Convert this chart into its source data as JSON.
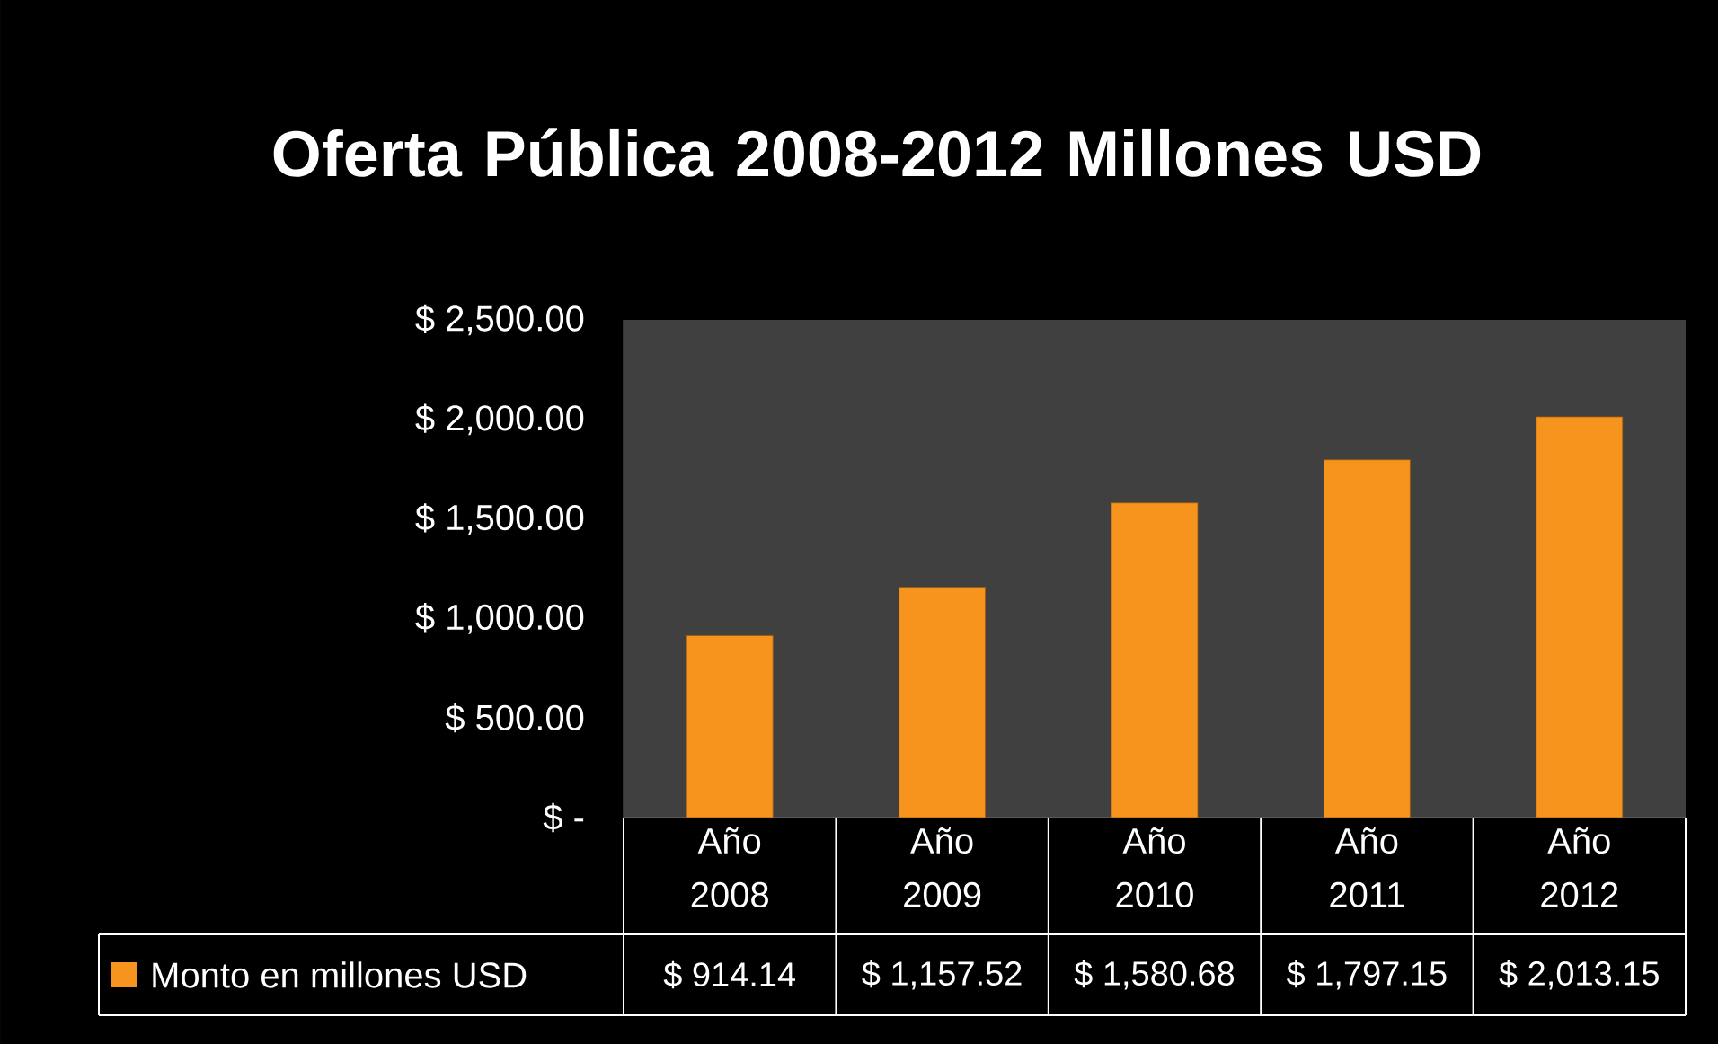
{
  "chart_data": {
    "type": "bar",
    "title": "Oferta Pública 2008-2012 Millones USD",
    "categories": [
      "Año 2008",
      "Año 2009",
      "Año 2010",
      "Año 2011",
      "Año 2012"
    ],
    "series": [
      {
        "name": "Monto en millones USD",
        "color": "#f7941d",
        "values": [
          914.14,
          1157.52,
          1580.68,
          1797.15,
          2013.15
        ],
        "value_labels": [
          "$ 914.14",
          "$ 1,157.52",
          "$ 1,580.68",
          "$ 1,797.15",
          "$ 2,013.15"
        ]
      }
    ],
    "ylim": [
      0,
      2500
    ],
    "yticks": [
      {
        "value": 0,
        "label": "$ -"
      },
      {
        "value": 500,
        "label": "$ 500.00"
      },
      {
        "value": 1000,
        "label": "$ 1,000.00"
      },
      {
        "value": 1500,
        "label": "$ 1,500.00"
      },
      {
        "value": 2000,
        "label": "$ 2,000.00"
      },
      {
        "value": 2500,
        "label": "$ 2,500.00"
      }
    ],
    "legend": "bottom"
  }
}
